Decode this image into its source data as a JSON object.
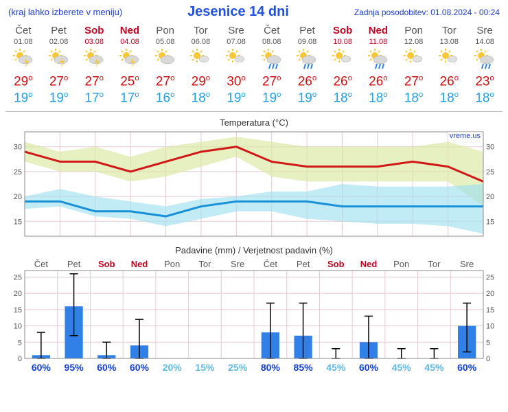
{
  "header": {
    "menu_note": "(kraj lahko izberete v meniju)",
    "title": "Jesenice 14 dni",
    "updated_label": "Zadnja posodobitev: 01.08.2024 - 00:24"
  },
  "watermark": "vreme.us",
  "weekend_color": "#c00020",
  "weekday_color": "#555555",
  "high_color": "#d01010",
  "low_color": "#20a0e8",
  "prob_strong_color": "#1040d8",
  "prob_weak_color": "#60b8e8",
  "days": [
    {
      "dow": "Čet",
      "date": "01.08",
      "weekend": false,
      "icon": "storm",
      "high": 29,
      "low": 19,
      "precip_mm": 1,
      "precip_lo": 0,
      "precip_hi": 8,
      "prob": 60
    },
    {
      "dow": "Pet",
      "date": "02.08",
      "weekend": false,
      "icon": "storm",
      "high": 27,
      "low": 19,
      "precip_mm": 16,
      "precip_lo": 7,
      "precip_hi": 26,
      "prob": 95
    },
    {
      "dow": "Sob",
      "date": "03.08",
      "weekend": true,
      "icon": "storm",
      "high": 27,
      "low": 17,
      "precip_mm": 1,
      "precip_lo": 0,
      "precip_hi": 5,
      "prob": 60
    },
    {
      "dow": "Ned",
      "date": "04.08",
      "weekend": true,
      "icon": "storm",
      "high": 25,
      "low": 17,
      "precip_mm": 4,
      "precip_lo": 0,
      "precip_hi": 12,
      "prob": 60
    },
    {
      "dow": "Pon",
      "date": "05.08",
      "weekend": false,
      "icon": "partcloud",
      "high": 27,
      "low": 16,
      "precip_mm": 0,
      "precip_lo": 0,
      "precip_hi": 0,
      "prob": 20
    },
    {
      "dow": "Tor",
      "date": "06.08",
      "weekend": false,
      "icon": "mostlysun",
      "high": 29,
      "low": 18,
      "precip_mm": 0,
      "precip_lo": 0,
      "precip_hi": 0,
      "prob": 15
    },
    {
      "dow": "Sre",
      "date": "07.08",
      "weekend": false,
      "icon": "mostlysun",
      "high": 30,
      "low": 19,
      "precip_mm": 0,
      "precip_lo": 0,
      "precip_hi": 0,
      "prob": 25
    },
    {
      "dow": "Čet",
      "date": "08.08",
      "weekend": false,
      "icon": "sunrain",
      "high": 27,
      "low": 19,
      "precip_mm": 8,
      "precip_lo": 0,
      "precip_hi": 17,
      "prob": 80
    },
    {
      "dow": "Pet",
      "date": "09.08",
      "weekend": false,
      "icon": "sunrain",
      "high": 26,
      "low": 19,
      "precip_mm": 7,
      "precip_lo": 0,
      "precip_hi": 17,
      "prob": 85
    },
    {
      "dow": "Sob",
      "date": "10.08",
      "weekend": true,
      "icon": "mostlysun",
      "high": 26,
      "low": 18,
      "precip_mm": 0,
      "precip_lo": 0,
      "precip_hi": 3,
      "prob": 45
    },
    {
      "dow": "Ned",
      "date": "11.08",
      "weekend": true,
      "icon": "sunrain",
      "high": 26,
      "low": 18,
      "precip_mm": 5,
      "precip_lo": 0,
      "precip_hi": 13,
      "prob": 60
    },
    {
      "dow": "Pon",
      "date": "12.08",
      "weekend": false,
      "icon": "mostlysun",
      "high": 27,
      "low": 18,
      "precip_mm": 0,
      "precip_lo": 0,
      "precip_hi": 3,
      "prob": 45
    },
    {
      "dow": "Tor",
      "date": "13.08",
      "weekend": false,
      "icon": "mostlysun",
      "high": 26,
      "low": 18,
      "precip_mm": 0,
      "precip_lo": 0,
      "precip_hi": 3,
      "prob": 45
    },
    {
      "dow": "Sre",
      "date": "14.08",
      "weekend": false,
      "icon": "sunrain",
      "high": 23,
      "low": 18,
      "precip_mm": 10,
      "precip_lo": 2,
      "precip_hi": 17,
      "prob": 60
    }
  ],
  "temp_chart": {
    "title": "Temperatura (°C)",
    "ylim": [
      12,
      33
    ],
    "yticks": [
      15,
      20,
      25,
      30
    ],
    "grid_color": "#e8c8d0",
    "background_color": "#ffffff",
    "high_line_color": "#d01818",
    "low_line_color": "#1890d8",
    "high_band_color": "#d8e8a0",
    "low_band_color": "#a0e0f0",
    "line_width": 3,
    "high_band": {
      "upper": [
        31,
        29,
        30,
        28,
        30,
        31,
        32,
        31,
        30,
        30,
        30,
        30,
        31,
        29
      ],
      "lower": [
        27,
        25,
        25,
        23,
        24,
        26,
        28,
        24,
        23,
        23,
        23,
        23,
        23,
        18
      ]
    },
    "low_band": {
      "upper": [
        20,
        21.5,
        20,
        19,
        18,
        19.5,
        20,
        21,
        21,
        22.5,
        22,
        22,
        22,
        22.5
      ],
      "lower": [
        17.5,
        18,
        16,
        15.5,
        14,
        15.5,
        17,
        17,
        15.5,
        15,
        14.5,
        14.5,
        14,
        12.5
      ]
    }
  },
  "precip_chart": {
    "title": "Padavine (mm) / Verjetnost padavin (%)",
    "ylim": [
      0,
      27
    ],
    "yticks": [
      0,
      5,
      10,
      15,
      20,
      25
    ],
    "grid_color": "#e8c8d0",
    "bar_color": "#3080e8",
    "error_color": "#000000",
    "prob_threshold": 50
  }
}
